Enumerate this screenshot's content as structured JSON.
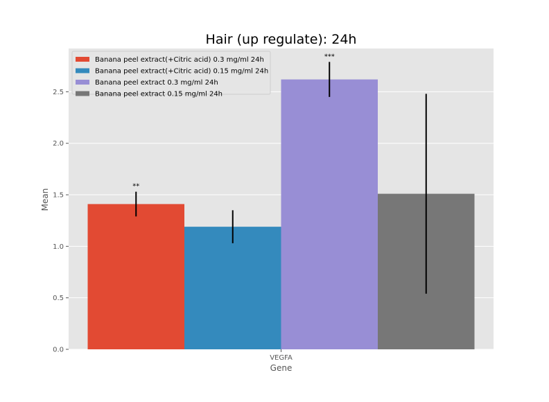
{
  "chart_data": {
    "type": "bar",
    "title": "Hair (up regulate): 24h",
    "xlabel": "Gene",
    "ylabel": "Mean",
    "categories": [
      "VEGFA"
    ],
    "ylim": [
      0,
      2.92
    ],
    "yticks": [
      0.0,
      0.5,
      1.0,
      1.5,
      2.0,
      2.5
    ],
    "ytick_labels": [
      "0.0",
      "0.5",
      "1.0",
      "1.5",
      "2.0",
      "2.5"
    ],
    "grid": true,
    "legend_position": "top-left",
    "series": [
      {
        "name": "Banana peel extract(+Citric acid) 0.3 mg/ml 24h",
        "values": [
          1.41
        ],
        "error": [
          0.12
        ],
        "annotation": "**",
        "color": "#E24A33"
      },
      {
        "name": "Banana peel extract(+Citric acid) 0.15 mg/ml 24h",
        "values": [
          1.19
        ],
        "error": [
          0.16
        ],
        "annotation": "",
        "color": "#348ABD"
      },
      {
        "name": "Banana peel extract 0.3 mg/ml 24h",
        "values": [
          2.62
        ],
        "error": [
          0.17
        ],
        "annotation": "***",
        "color": "#988ED5"
      },
      {
        "name": "Banana peel extract 0.15 mg/ml 24h",
        "values": [
          1.51
        ],
        "error": [
          0.97
        ],
        "annotation": "",
        "color": "#777777"
      }
    ]
  }
}
